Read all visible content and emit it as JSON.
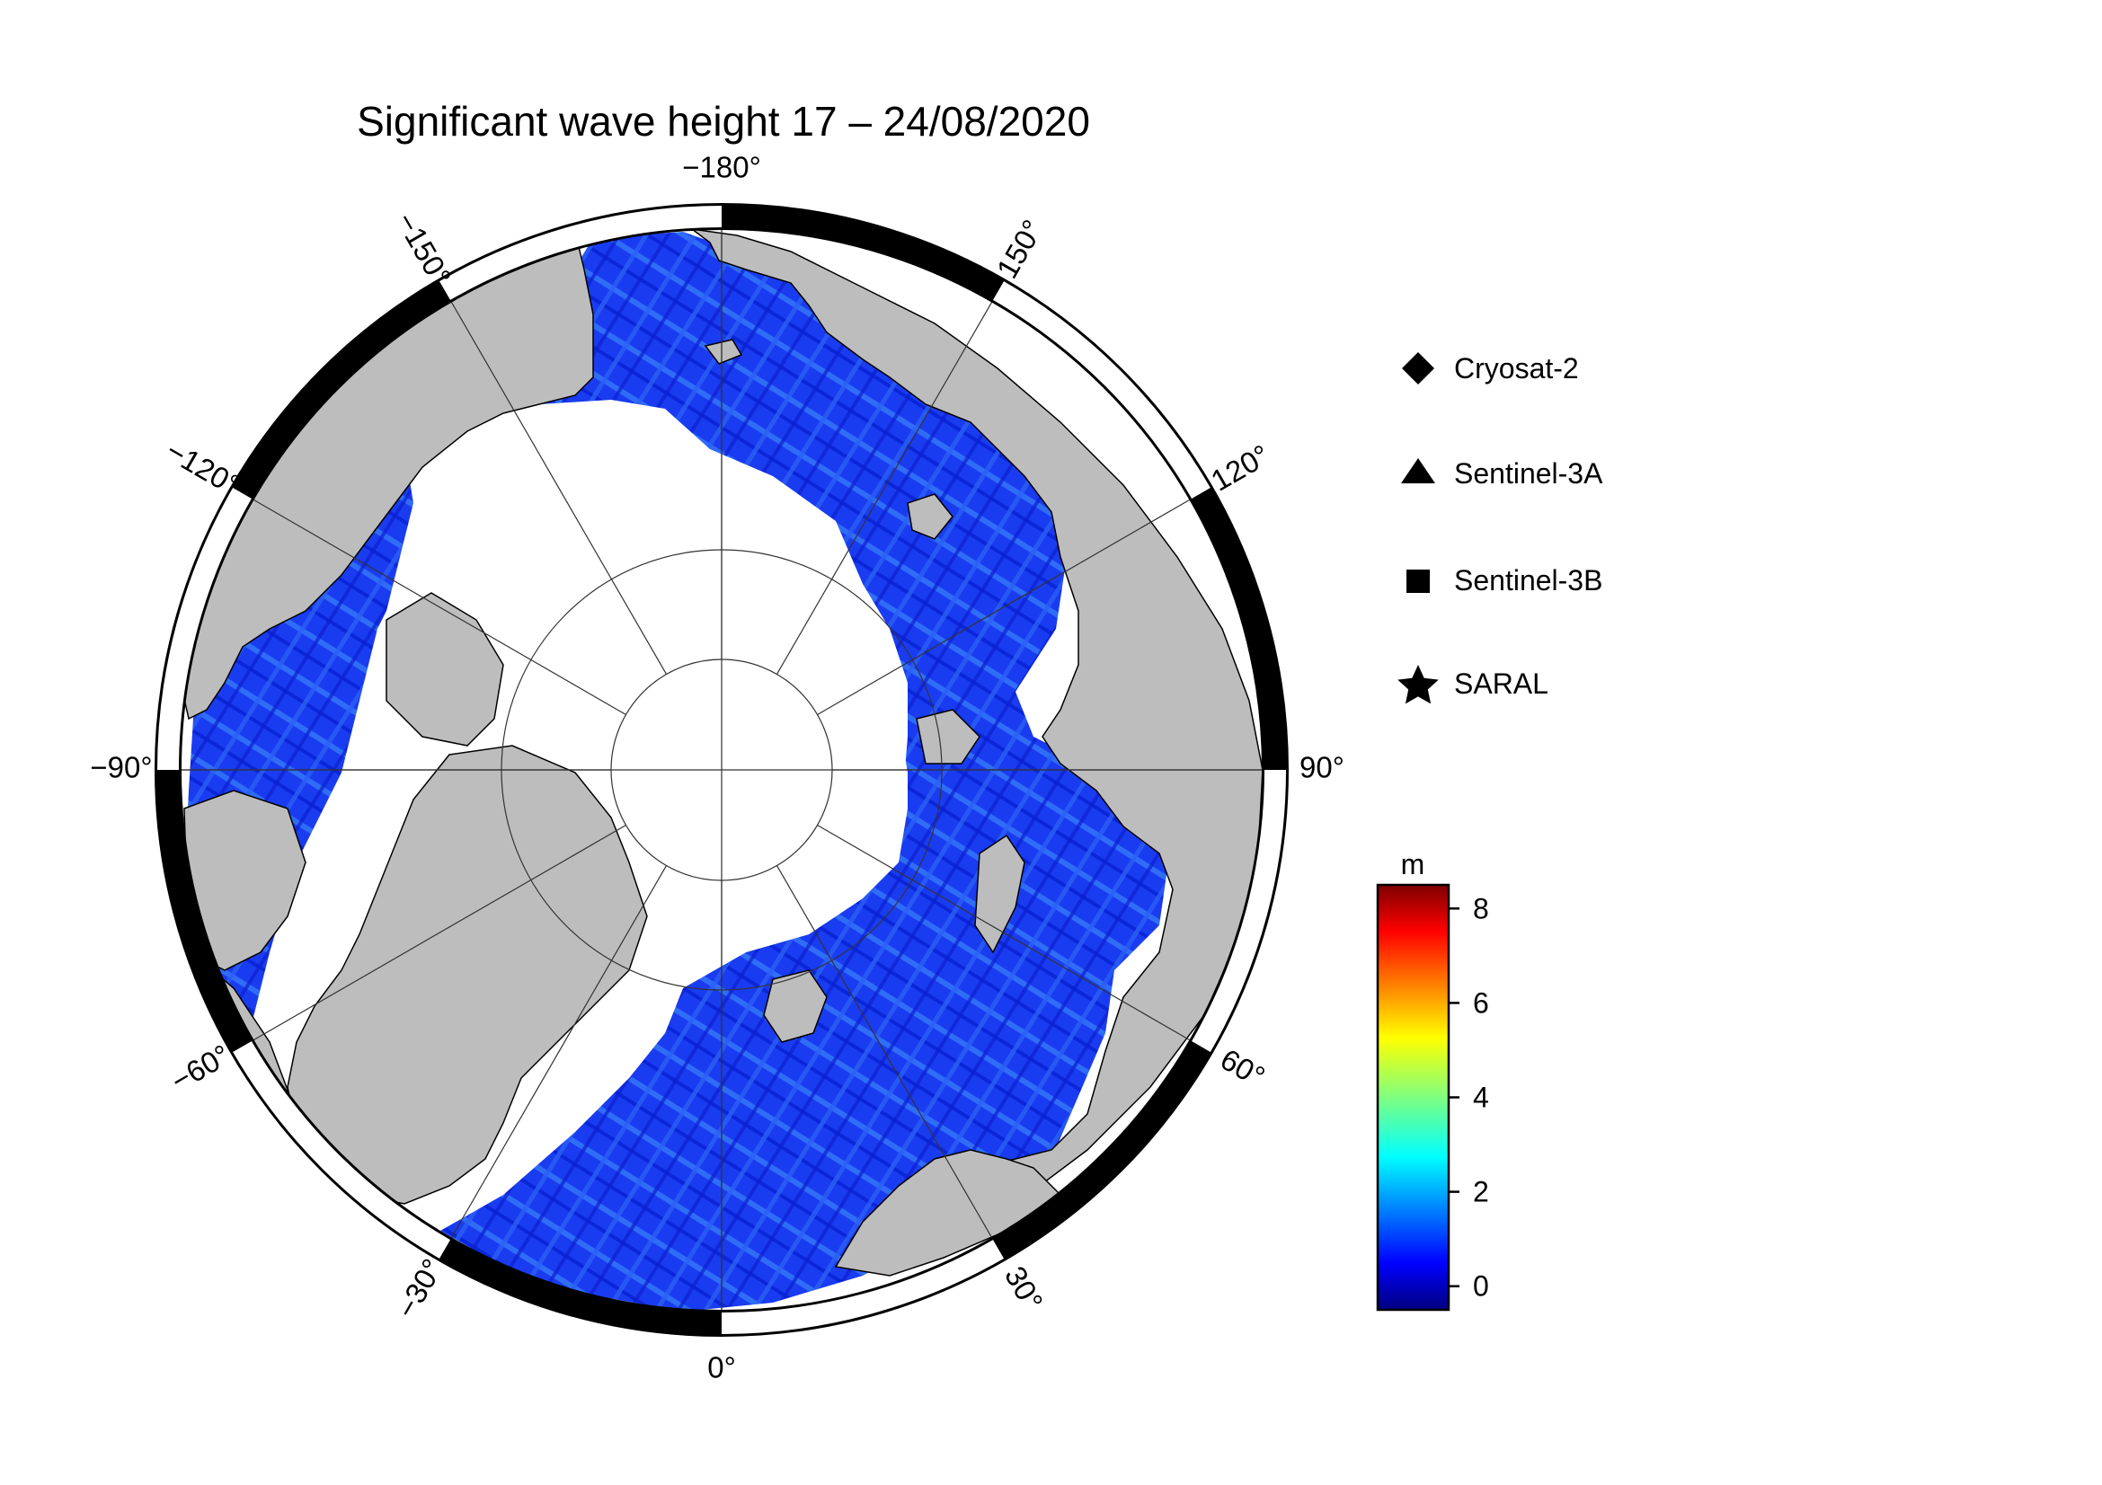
{
  "title": "Significant wave height 17 – 24/08/2020",
  "map": {
    "projection": "north polar stereographic",
    "longitude_labels": [
      {
        "lon": -180,
        "text": "−180°"
      },
      {
        "lon": -150,
        "text": "−150°"
      },
      {
        "lon": -120,
        "text": "−120°"
      },
      {
        "lon": -90,
        "text": "−90°"
      },
      {
        "lon": -60,
        "text": "−60°"
      },
      {
        "lon": -30,
        "text": "−30°"
      },
      {
        "lon": 0,
        "text": "0°"
      },
      {
        "lon": 30,
        "text": "30°"
      },
      {
        "lon": 60,
        "text": "60°"
      },
      {
        "lon": 90,
        "text": "90°"
      },
      {
        "lon": 120,
        "text": "120°"
      },
      {
        "lon": 150,
        "text": "150°"
      }
    ],
    "colors": {
      "land": "#bdbdbd",
      "ice": "#ffffff",
      "waves": "#1a3cf0",
      "frame_dark": "#000000",
      "frame_light": "#ffffff"
    }
  },
  "legend": {
    "items": [
      {
        "symbol": "diamond-icon",
        "label": "Cryosat-2"
      },
      {
        "symbol": "triangle-icon",
        "label": "Sentinel-3A"
      },
      {
        "symbol": "square-icon",
        "label": "Sentinel-3B"
      },
      {
        "symbol": "star-icon",
        "label": "SARAL"
      }
    ]
  },
  "colorbar": {
    "unit": "m",
    "min": -0.5,
    "max": 8.5,
    "ticks": [
      {
        "value": 0,
        "label": "0"
      },
      {
        "value": 2,
        "label": "2"
      },
      {
        "value": 4,
        "label": "4"
      },
      {
        "value": 6,
        "label": "6"
      },
      {
        "value": 8,
        "label": "8"
      }
    ],
    "colormap": "jet"
  }
}
